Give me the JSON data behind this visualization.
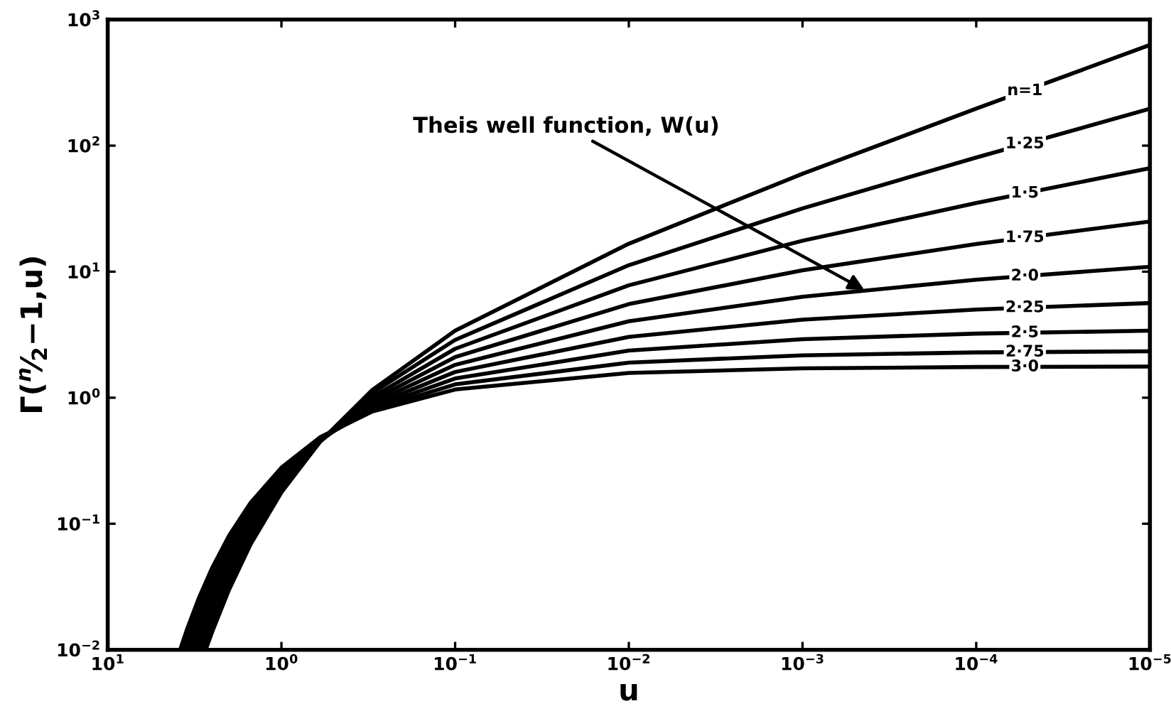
{
  "chart_data": {
    "type": "line",
    "xlabel": "u",
    "ylabel": "Γ($^{n}$⁄$_{2}$−1,u)",
    "log": "xy",
    "grid": false,
    "legend": false,
    "marker": "none",
    "line_style": "solid",
    "xlim": [
      10,
      1e-05
    ],
    "ylim": [
      0.01,
      1000
    ],
    "xticks": [
      {
        "value": 10,
        "label": "10$^{1}$"
      },
      {
        "value": 1,
        "label": "10$^{0}$"
      },
      {
        "value": 0.1,
        "label": "10$^{−1}$"
      },
      {
        "value": 0.01,
        "label": "10$^{−2}$"
      },
      {
        "value": 0.001,
        "label": "10$^{−3}$"
      },
      {
        "value": 0.0001,
        "label": "10$^{−4}$"
      },
      {
        "value": 1e-05,
        "label": "10$^{−5}$"
      }
    ],
    "yticks": [
      {
        "value": 0.01,
        "label": "10$^{−2}$"
      },
      {
        "value": 0.1,
        "label": "10$^{−1}$"
      },
      {
        "value": 1,
        "label": "10$^{0}$"
      },
      {
        "value": 10,
        "label": "10$^{1}$"
      },
      {
        "value": 100,
        "label": "10$^{2}$"
      },
      {
        "value": 1000,
        "label": "10$^{3}$"
      }
    ],
    "annotations": [
      {
        "text": "Theis well function, W(u)",
        "x": 0.00044,
        "y": 7.15
      }
    ],
    "series": [
      {
        "name": "n=1",
        "color": "#000000",
        "x": [
          1e-05,
          0.0001,
          0.001,
          0.01,
          0.1,
          0.3,
          0.6,
          1,
          1.5,
          2,
          2.5,
          2.73
        ],
        "values": [
          629,
          196.5,
          59.76,
          16.66,
          3.402,
          1.15,
          0.446,
          0.1777,
          0.0692,
          0.0301,
          0.01397,
          0.01
        ]
      },
      {
        "name": "1·25",
        "color": "#000000",
        "x": [
          1e-05,
          0.0001,
          0.001,
          0.01,
          0.1,
          0.3,
          0.6,
          1,
          1.5,
          2,
          2.5,
          2.84
        ],
        "values": [
          196.15,
          80.51,
          31.76,
          11.26,
          2.873,
          1.091,
          0.446,
          0.1868,
          0.0757,
          0.03394,
          0.01613,
          0.01
        ]
      },
      {
        "name": "1·5",
        "color": "#000000",
        "x": [
          1e-05,
          0.0001,
          0.001,
          0.01,
          0.1,
          0.3,
          0.6,
          1,
          1.5,
          2,
          2.5,
          2.95
        ],
        "values": [
          66.23,
          35.1,
          17.6,
          7.79,
          2.444,
          1.011,
          0.4476,
          0.1968,
          0.083,
          0.0383,
          0.01863,
          0.01
        ]
      },
      {
        "name": "1·75",
        "color": "#000000",
        "x": [
          1e-05,
          0.0001,
          0.001,
          0.01,
          0.1,
          0.3,
          0.6,
          1,
          1.5,
          2,
          2.5,
          3,
          3.08
        ],
        "values": [
          25.02,
          16.58,
          10.26,
          5.53,
          2.1,
          0.954,
          0.4503,
          0.2076,
          0.091,
          0.04327,
          0.02153,
          0.01108,
          0.01
        ]
      },
      {
        "name": "2·0",
        "color": "#000000",
        "x": [
          1e-05,
          0.0001,
          0.001,
          0.01,
          0.1,
          0.3,
          0.6,
          1,
          1.5,
          2,
          2.5,
          3,
          3.21
        ],
        "values": [
          10.94,
          8.633,
          6.332,
          4.038,
          1.823,
          0.906,
          0.4544,
          0.2194,
          0.1,
          0.0489,
          0.02491,
          0.01305,
          0.01
        ]
      },
      {
        "name": "2·25",
        "color": "#000000",
        "x": [
          1e-05,
          0.0001,
          0.001,
          0.01,
          0.1,
          0.3,
          0.6,
          1,
          1.5,
          2,
          2.5,
          3,
          3.35
        ],
        "values": [
          5.637,
          5.004,
          4.161,
          3.04,
          1.6,
          0.864,
          0.4599,
          0.2323,
          0.11,
          0.05535,
          0.02884,
          0.0154,
          0.01
        ]
      },
      {
        "name": "2·5",
        "color": "#000000",
        "x": [
          1e-05,
          0.0001,
          0.001,
          0.01,
          0.1,
          0.3,
          0.6,
          1,
          1.5,
          2,
          2.5,
          3,
          3.5
        ],
        "values": [
          3.401,
          3.226,
          2.914,
          2.363,
          1.42,
          0.829,
          0.4667,
          0.2464,
          0.1212,
          0.06269,
          0.0334,
          0.01817,
          0.01
        ]
      },
      {
        "name": "2·75",
        "color": "#000000",
        "x": [
          1e-05,
          0.0001,
          0.001,
          0.01,
          0.1,
          0.3,
          0.6,
          1,
          1.5,
          2,
          2.5,
          3,
          3.5,
          3.66
        ],
        "values": [
          2.335,
          2.286,
          2.17,
          1.898,
          1.276,
          0.8,
          0.475,
          0.2619,
          0.1336,
          0.07106,
          0.03873,
          0.02146,
          0.01203,
          0.01
        ]
      },
      {
        "name": "3·0",
        "color": "#000000",
        "x": [
          1e-05,
          0.0001,
          0.001,
          0.01,
          0.1,
          0.3,
          0.6,
          1,
          1.5,
          2,
          2.5,
          3,
          3.5,
          3.83
        ],
        "values": [
          1.766,
          1.7525,
          1.709,
          1.573,
          1.161,
          0.777,
          0.485,
          0.2788,
          0.1476,
          0.08065,
          0.04492,
          0.02536,
          0.01445,
          0.01
        ]
      }
    ]
  }
}
